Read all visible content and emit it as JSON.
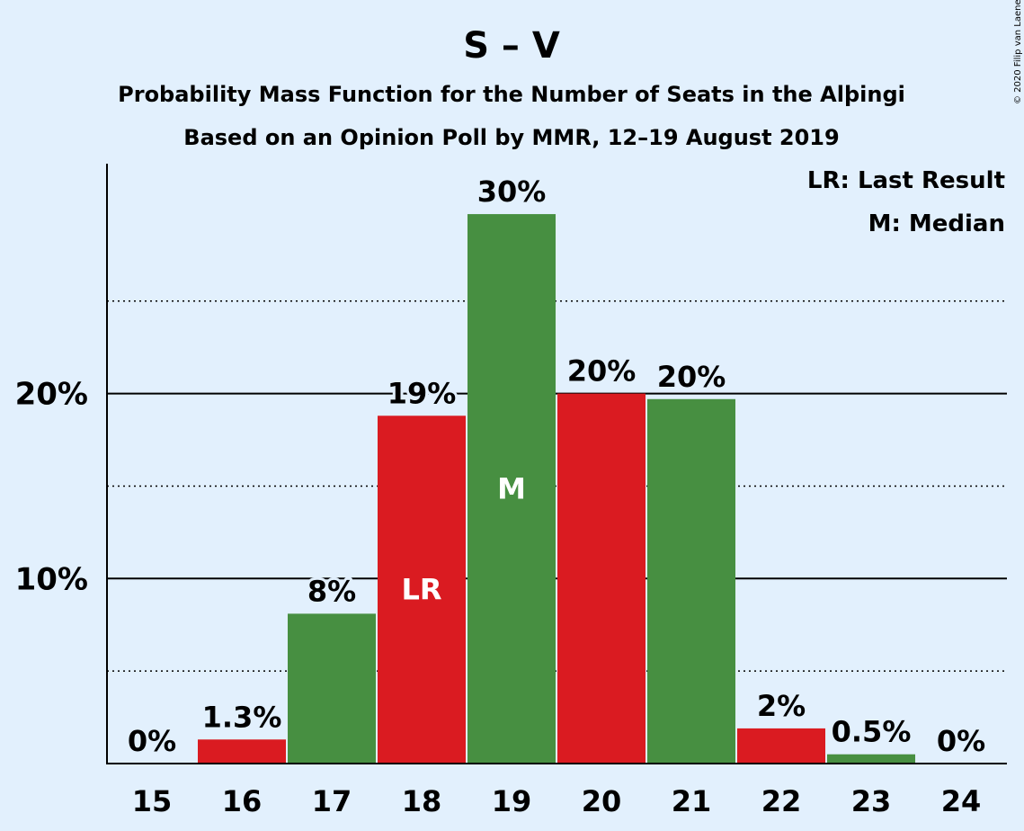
{
  "header": {
    "title": "S – V",
    "subtitle1": "Probability Mass Function for the Number of Seats in the Alþingi",
    "subtitle2": "Based on an Opinion Poll by MMR, 12–19 August 2019"
  },
  "legend": {
    "lr": "LR: Last Result",
    "m": "M: Median"
  },
  "copyright": "© 2020 Filip van Laenen",
  "colors": {
    "background": "#e2f0fd",
    "red": "#da1b21",
    "green": "#478f41",
    "axis": "#000000"
  },
  "chart_data": {
    "type": "bar",
    "categories": [
      "15",
      "16",
      "17",
      "18",
      "19",
      "20",
      "21",
      "22",
      "23",
      "24"
    ],
    "values": [
      0,
      1.3,
      8.1,
      18.8,
      29.7,
      20.0,
      19.7,
      1.9,
      0.5,
      0
    ],
    "labels": [
      "0%",
      "1.3%",
      "8%",
      "19%",
      "30%",
      "20%",
      "20%",
      "2%",
      "0.5%",
      "0%"
    ],
    "bar_colors": [
      "red",
      "red",
      "green",
      "red",
      "green",
      "red",
      "green",
      "red",
      "green",
      "red"
    ],
    "bar_markers": [
      "",
      "",
      "",
      "LR",
      "M",
      "",
      "",
      "",
      "",
      ""
    ],
    "ylim": [
      0,
      32.3
    ],
    "yticks": [
      10,
      20
    ],
    "ytick_labels": [
      "10%",
      "20%"
    ],
    "minor_gridlines": [
      5,
      15,
      25
    ],
    "legend_position": "top-right"
  }
}
